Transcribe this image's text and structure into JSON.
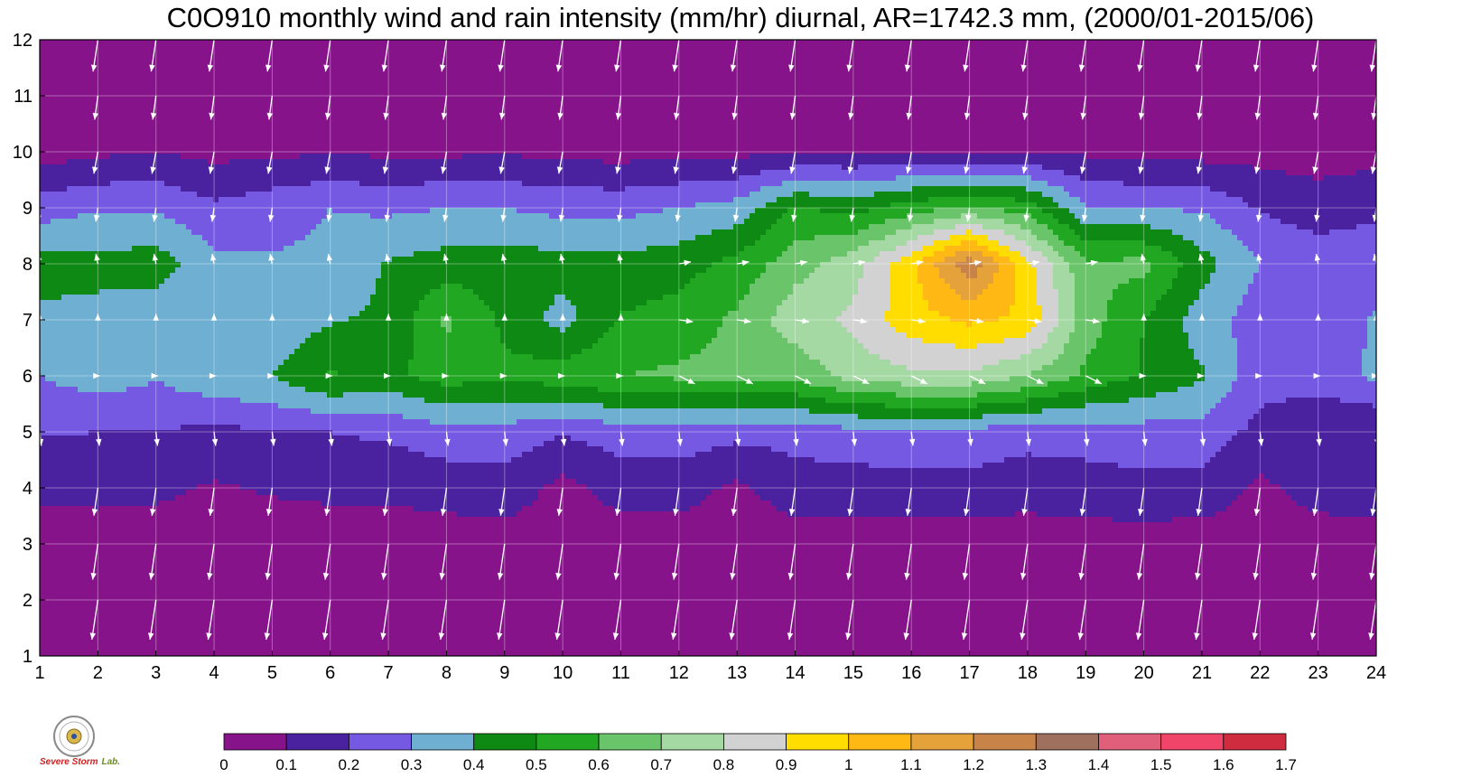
{
  "chart_data": {
    "type": "contour",
    "title": "C0O910 monthly wind and rain intensity (mm/hr) diurnal, AR=1742.3 mm, (2000/01-2015/06)",
    "x_ticks": [
      "1",
      "2",
      "3",
      "4",
      "5",
      "6",
      "7",
      "8",
      "9",
      "10",
      "11",
      "12",
      "13",
      "14",
      "15",
      "16",
      "17",
      "18",
      "19",
      "20",
      "21",
      "22",
      "23",
      "24"
    ],
    "y_ticks": [
      "1",
      "2",
      "3",
      "4",
      "5",
      "6",
      "7",
      "8",
      "9",
      "10",
      "11",
      "12"
    ],
    "xlim": [
      1,
      24
    ],
    "ylim": [
      1,
      12
    ],
    "grid": true,
    "colorbar": {
      "levels": [
        "0",
        "0.1",
        "0.2",
        "0.3",
        "0.4",
        "0.5",
        "0.6",
        "0.7",
        "0.8",
        "0.9",
        "1",
        "1.1",
        "1.2",
        "1.3",
        "1.4",
        "1.5",
        "1.6",
        "1.7"
      ],
      "colors": [
        "#87138b",
        "#4a22a0",
        "#7559e3",
        "#6fb0d2",
        "#0e8a14",
        "#21a722",
        "#6ac56a",
        "#a4d9a4",
        "#d2d2d2",
        "#ffdd00",
        "#ffb814",
        "#e5a23a",
        "#c88448",
        "#a0705e",
        "#e0607c",
        "#f04468",
        "#d02c40"
      ]
    },
    "rain_intensity_grid": {
      "note": "rows = month 1..12, columns = hour 1..24, values in mm/hr",
      "values": [
        [
          0.02,
          0.02,
          0.02,
          0.02,
          0.02,
          0.02,
          0.02,
          0.02,
          0.02,
          0.02,
          0.02,
          0.02,
          0.02,
          0.02,
          0.02,
          0.02,
          0.02,
          0.02,
          0.02,
          0.02,
          0.02,
          0.02,
          0.02,
          0.02
        ],
        [
          0.03,
          0.03,
          0.03,
          0.03,
          0.03,
          0.03,
          0.03,
          0.03,
          0.03,
          0.03,
          0.03,
          0.03,
          0.03,
          0.03,
          0.03,
          0.03,
          0.03,
          0.03,
          0.03,
          0.03,
          0.03,
          0.03,
          0.03,
          0.03
        ],
        [
          0.05,
          0.05,
          0.05,
          0.05,
          0.05,
          0.05,
          0.05,
          0.05,
          0.05,
          0.05,
          0.05,
          0.05,
          0.05,
          0.05,
          0.05,
          0.05,
          0.05,
          0.05,
          0.05,
          0.05,
          0.05,
          0.05,
          0.05,
          0.05
        ],
        [
          0.12,
          0.13,
          0.12,
          0.09,
          0.11,
          0.12,
          0.12,
          0.14,
          0.16,
          0.07,
          0.14,
          0.14,
          0.08,
          0.15,
          0.15,
          0.16,
          0.16,
          0.14,
          0.16,
          0.17,
          0.16,
          0.08,
          0.14,
          0.16
        ],
        [
          0.21,
          0.2,
          0.2,
          0.17,
          0.2,
          0.2,
          0.22,
          0.26,
          0.26,
          0.21,
          0.25,
          0.26,
          0.23,
          0.24,
          0.27,
          0.27,
          0.27,
          0.24,
          0.24,
          0.26,
          0.26,
          0.17,
          0.12,
          0.1
        ],
        [
          0.3,
          0.35,
          0.31,
          0.38,
          0.4,
          0.51,
          0.47,
          0.55,
          0.52,
          0.56,
          0.6,
          0.62,
          0.63,
          0.63,
          0.74,
          0.78,
          0.78,
          0.7,
          0.58,
          0.49,
          0.41,
          0.24,
          0.24,
          0.32
        ],
        [
          0.38,
          0.37,
          0.34,
          0.33,
          0.33,
          0.39,
          0.42,
          0.62,
          0.48,
          0.36,
          0.51,
          0.54,
          0.62,
          0.76,
          0.82,
          0.96,
          1.02,
          0.98,
          0.65,
          0.5,
          0.35,
          0.25,
          0.24,
          0.31
        ],
        [
          0.44,
          0.43,
          0.45,
          0.33,
          0.31,
          0.32,
          0.41,
          0.44,
          0.45,
          0.44,
          0.43,
          0.46,
          0.53,
          0.66,
          0.76,
          0.97,
          1.28,
          0.93,
          0.62,
          0.63,
          0.44,
          0.3,
          0.27,
          0.26
        ],
        [
          0.25,
          0.29,
          0.29,
          0.22,
          0.26,
          0.3,
          0.28,
          0.3,
          0.3,
          0.27,
          0.27,
          0.3,
          0.34,
          0.51,
          0.46,
          0.55,
          0.62,
          0.55,
          0.31,
          0.29,
          0.29,
          0.19,
          0.14,
          0.18
        ],
        [
          0.05,
          0.08,
          0.1,
          0.07,
          0.08,
          0.09,
          0.08,
          0.08,
          0.09,
          0.07,
          0.06,
          0.07,
          0.07,
          0.09,
          0.1,
          0.1,
          0.1,
          0.1,
          0.08,
          0.07,
          0.06,
          0.06,
          0.06,
          0.06
        ],
        [
          0.04,
          0.04,
          0.04,
          0.04,
          0.04,
          0.04,
          0.04,
          0.04,
          0.04,
          0.04,
          0.04,
          0.04,
          0.04,
          0.04,
          0.04,
          0.04,
          0.04,
          0.04,
          0.04,
          0.04,
          0.04,
          0.04,
          0.04,
          0.04
        ],
        [
          0.03,
          0.03,
          0.03,
          0.03,
          0.03,
          0.03,
          0.03,
          0.03,
          0.03,
          0.03,
          0.03,
          0.03,
          0.03,
          0.03,
          0.03,
          0.03,
          0.03,
          0.03,
          0.03,
          0.03,
          0.03,
          0.03,
          0.03,
          0.03
        ]
      ]
    },
    "wind_vectors": {
      "note": "one arrow per month/hour; u,v in relative units; u>0 east, v>0 north",
      "months": [
        {
          "month": 1,
          "u": -0.15,
          "v": -1.0
        },
        {
          "month": 2,
          "u": -0.15,
          "v": -1.0
        },
        {
          "month": 3,
          "u": -0.13,
          "v": -0.9
        },
        {
          "month": 4,
          "u": -0.1,
          "v": -0.7
        },
        {
          "month": 5,
          "u": 0.04,
          "v": -0.35
        },
        {
          "month": 6,
          "u": 0.05,
          "v": 0.0
        },
        {
          "month": 7,
          "u": 0.0,
          "v": 0.15
        },
        {
          "month": 8,
          "u": -0.05,
          "v": 0.25
        },
        {
          "month": 9,
          "u": -0.05,
          "v": -0.35
        },
        {
          "month": 10,
          "u": -0.1,
          "v": -0.55
        },
        {
          "month": 11,
          "u": -0.08,
          "v": -0.6
        },
        {
          "month": 12,
          "u": -0.12,
          "v": -0.8
        }
      ]
    }
  },
  "logo": {
    "main": "Severe Storm",
    "lab": "Lab."
  }
}
